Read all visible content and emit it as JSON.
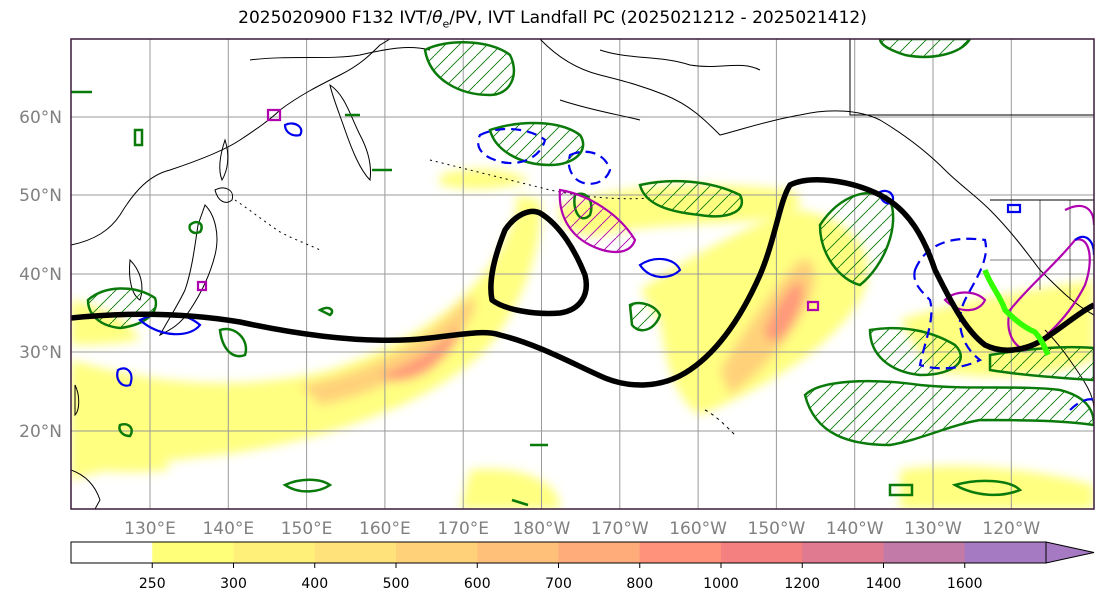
{
  "title": {
    "prefix": "2025020900 F132 IVT/",
    "theta": "θ",
    "theta_sub": "e",
    "suffix": "/PV, IVT Landfall PC (2025021212 - 2025021412)"
  },
  "map": {
    "lat_labels": [
      "60°N",
      "50°N",
      "40°N",
      "30°N",
      "20°N"
    ],
    "lon_labels": [
      "130°E",
      "140°E",
      "150°E",
      "160°E",
      "170°E",
      "180°W",
      "170°W",
      "160°W",
      "150°W",
      "140°W",
      "130°W",
      "120°W"
    ],
    "colors": {
      "frame": "#3a1a3a",
      "grid": "#9a9a9a",
      "coast": "#000000",
      "pv_contour": "#0a7a0a",
      "theta_contour": "#b000b0",
      "ivt_contour": "#0000ee",
      "landfall": "#33ff00",
      "black_contour": "#000000"
    }
  },
  "colorbar": {
    "ticks": [
      "250",
      "300",
      "400",
      "500",
      "600",
      "700",
      "800",
      "1000",
      "1200",
      "1400",
      "1600"
    ],
    "colors": [
      "#ffff7a",
      "#fff07a",
      "#ffe27a",
      "#ffd27a",
      "#ffc07a",
      "#ffab7a",
      "#ff927a",
      "#f58080",
      "#e07a90",
      "#c27aa8",
      "#a67ac2"
    ]
  }
}
